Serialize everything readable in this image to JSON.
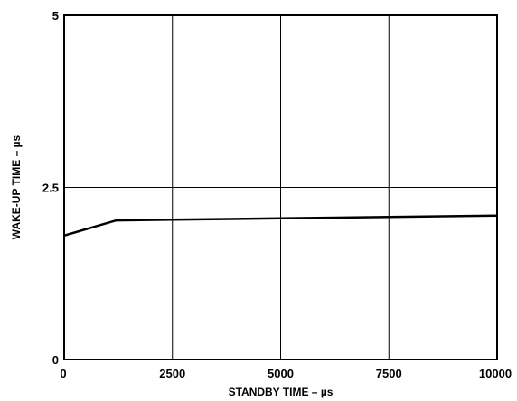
{
  "chart_data": {
    "type": "line",
    "title": "",
    "xlabel": "STANDBY TIME – µs",
    "ylabel": "WAKE-UP TIME – µs",
    "xlim": [
      0,
      10000
    ],
    "ylim": [
      0,
      5
    ],
    "x_ticks": [
      0,
      2500,
      5000,
      7500,
      10000
    ],
    "x_tick_labels": [
      "0",
      "2500",
      "5000",
      "7500",
      "10000"
    ],
    "y_ticks": [
      0,
      2.5,
      5
    ],
    "y_tick_labels": [
      "0",
      "2.5",
      "5"
    ],
    "grid": true,
    "legend": "none",
    "series": [
      {
        "color": "#000000",
        "x": [
          0,
          1200,
          2500,
          5000,
          7500,
          10000
        ],
        "y": [
          1.8,
          2.02,
          2.03,
          2.05,
          2.07,
          2.09
        ]
      }
    ]
  }
}
